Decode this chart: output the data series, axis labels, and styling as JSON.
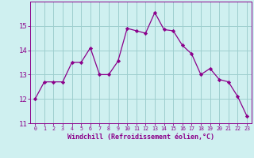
{
  "x": [
    0,
    1,
    2,
    3,
    4,
    5,
    6,
    7,
    8,
    9,
    10,
    11,
    12,
    13,
    14,
    15,
    16,
    17,
    18,
    19,
    20,
    21,
    22,
    23
  ],
  "y": [
    12.0,
    12.7,
    12.7,
    12.7,
    13.5,
    13.5,
    14.1,
    13.0,
    13.0,
    13.55,
    14.9,
    14.8,
    14.7,
    15.55,
    14.85,
    14.8,
    14.2,
    13.85,
    13.0,
    13.25,
    12.8,
    12.7,
    12.1,
    11.3
  ],
  "line_color": "#8b008b",
  "marker": "D",
  "marker_size": 2.2,
  "bg_color": "#cff0f0",
  "grid_color": "#9ecece",
  "xlabel": "Windchill (Refroidissement éolien,°C)",
  "xlabel_color": "#8b008b",
  "tick_color": "#8b008b",
  "ylim": [
    11,
    16
  ],
  "yticks": [
    11,
    12,
    13,
    14,
    15
  ],
  "xticks": [
    0,
    1,
    2,
    3,
    4,
    5,
    6,
    7,
    8,
    9,
    10,
    11,
    12,
    13,
    14,
    15,
    16,
    17,
    18,
    19,
    20,
    21,
    22,
    23
  ],
  "xtick_labels": [
    "0",
    "1",
    "2",
    "3",
    "4",
    "5",
    "6",
    "7",
    "8",
    "9",
    "10",
    "11",
    "12",
    "13",
    "14",
    "15",
    "16",
    "17",
    "18",
    "19",
    "20",
    "21",
    "22",
    "23"
  ]
}
